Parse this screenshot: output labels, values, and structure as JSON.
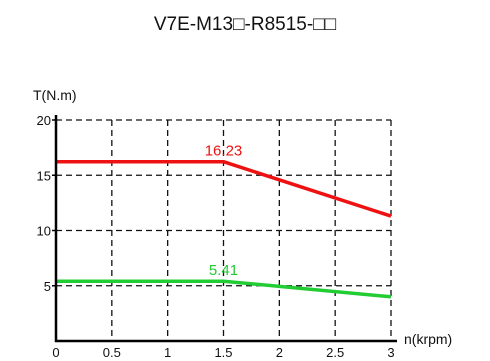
{
  "chart_data": {
    "type": "line",
    "title": "V7E-M13□-R8515-□□",
    "xlabel": "n(krpm)",
    "ylabel": "T(N.m)",
    "xlim": [
      0,
      3
    ],
    "ylim": [
      0,
      20
    ],
    "x_ticks": [
      "0",
      "0.5",
      "1",
      "1.5",
      "2",
      "2.5",
      "3"
    ],
    "y_ticks": [
      "5",
      "10",
      "15",
      "20"
    ],
    "grid": true,
    "grid_style": "dashed",
    "series": [
      {
        "color": "#ee1111",
        "points": [
          [
            0,
            16.23
          ],
          [
            1.5,
            16.23
          ],
          [
            3,
            11.3
          ]
        ],
        "label": "16.23",
        "label_at": [
          1.5,
          16.23
        ]
      },
      {
        "color": "#22cc33",
        "points": [
          [
            0,
            5.41
          ],
          [
            1.5,
            5.41
          ],
          [
            3,
            4.0
          ]
        ],
        "label": "5.41",
        "label_at": [
          1.5,
          5.41
        ]
      }
    ]
  }
}
